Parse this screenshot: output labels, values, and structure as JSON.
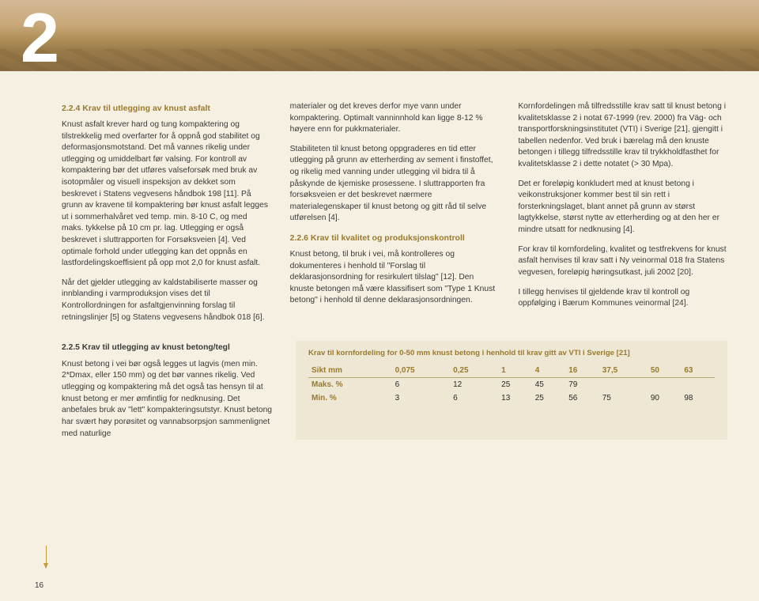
{
  "chapter_number": "2",
  "page_number": "16",
  "sections": {
    "s224_title": "2.2.4 Krav til utlegging av knust asfalt",
    "s224_p1": "Knust asfalt krever hard og tung kompaktering og tilstrekkelig med overfarter for å oppnå god stabilitet og deformasjonsmotstand. Det må vannes rikelig under utlegging og umiddelbart før valsing. For kontroll av kompaktering bør det utføres valseforsøk med bruk av isotopmåler og visuell inspeksjon av dekket som beskrevet i Statens vegvesens håndbok 198 [11]. På grunn av kravene til kompaktering bør knust asfalt legges ut i sommerhalvåret ved temp. min. 8-10 C, og med maks. tykkelse på 10 cm pr. lag. Utlegging er også beskrevet i sluttrapporten for Forsøksveien [4]. Ved optimale forhold under utlegging kan det oppnås en lastfordelingskoeffisient på opp mot 2,0 for knust asfalt.",
    "s224_p2": "Når det gjelder utlegging av kaldstabiliserte masser og innblanding i varmproduksjon vises det til Kontrollordningen for asfaltgjenvinning forslag til retningslinjer [5] og Statens vegvesens håndbok 018 [6].",
    "col2_p1": "materialer og det kreves derfor mye vann under kompaktering. Optimalt vanninnhold kan ligge 8-12 % høyere enn for pukkmaterialer.",
    "col2_p2": "Stabiliteten til knust betong oppgraderes en tid etter utlegging på grunn av etterherding av sement i finstoffet, og rikelig med vanning under utlegging vil bidra til å påskynde de kjemiske prosessene. I sluttrapporten fra forsøksveien er det beskrevet nærmere materialegenskaper til knust betong og gitt råd til selve utførelsen [4].",
    "s226_title": "2.2.6 Krav til kvalitet og produksjonskontroll",
    "s226_p1": "Knust betong, til bruk i vei, må kontrolleres og dokumenteres i henhold til \"Forslag til deklarasjonsordning for resirkulert tilslag\" [12]. Den knuste betongen må være klassifisert som \"Type 1 Knust betong\" i henhold til denne deklarasjonsordningen.",
    "col3_p1": "Kornfordelingen må tilfredsstille krav satt til knust betong i kvalitetsklasse 2 i notat 67-1999 (rev. 2000) fra Väg- och transportforskningsinstitutet (VTI) i Sverige [21], gjengitt i tabellen nedenfor. Ved bruk i bærelag må den knuste betongen i tillegg tilfredsstille krav til trykkholdfasthet for kvalitetsklasse 2 i dette notatet (> 30 Mpa).",
    "col3_p2": "Det er foreløpig konkludert med at knust betong i veikonstruksjoner kommer best til sin rett i forsterkningslaget, blant annet på grunn av størst lagtykkelse, størst nytte av etterherding og at den her er mindre utsatt for nedknusing [4].",
    "col3_p3": "For krav til kornfordeling, kvalitet og testfrekvens for knust asfalt henvises til krav satt i Ny veinormal 018 fra Statens vegvesen, foreløpig høringsutkast, juli 2002 [20].",
    "col3_p4": "I tillegg henvises til gjeldende krav til kontroll og oppfølging i Bærum Kommunes veinormal [24].",
    "s225_title": "2.2.5 Krav til utlegging av knust betong/tegl",
    "s225_p1": "Knust betong i vei bør også legges ut lagvis (men min. 2*Dmax, eller 150 mm) og det bør vannes rikelig. Ved utlegging og kompaktering må det også tas hensyn til at knust betong er mer ømfintlig for nedknusing. Det anbefales bruk av \"lett\" kompakteringsutstyr. Knust betong har svært høy porøsitet og vannabsorpsjon sammenlignet med naturlige"
  },
  "table": {
    "caption": "Krav til kornfordeling for 0-50 mm knust betong i henhold til krav gitt av VTI i Sverige [21]",
    "headers": [
      "Sikt mm",
      "0,075",
      "0,25",
      "1",
      "4",
      "16",
      "37,5",
      "50",
      "63"
    ],
    "rows": [
      [
        "Maks. %",
        "6",
        "12",
        "25",
        "45",
        "79",
        "",
        "",
        ""
      ],
      [
        "Min. %",
        "3",
        "6",
        "13",
        "25",
        "56",
        "75",
        "90",
        "98"
      ]
    ]
  },
  "colors": {
    "heading": "#9a7a2f",
    "body_text": "#3a3a3a",
    "page_bg": "#f5f0e1",
    "table_bg": "#ede7d4",
    "arrow": "#c49a3a"
  }
}
